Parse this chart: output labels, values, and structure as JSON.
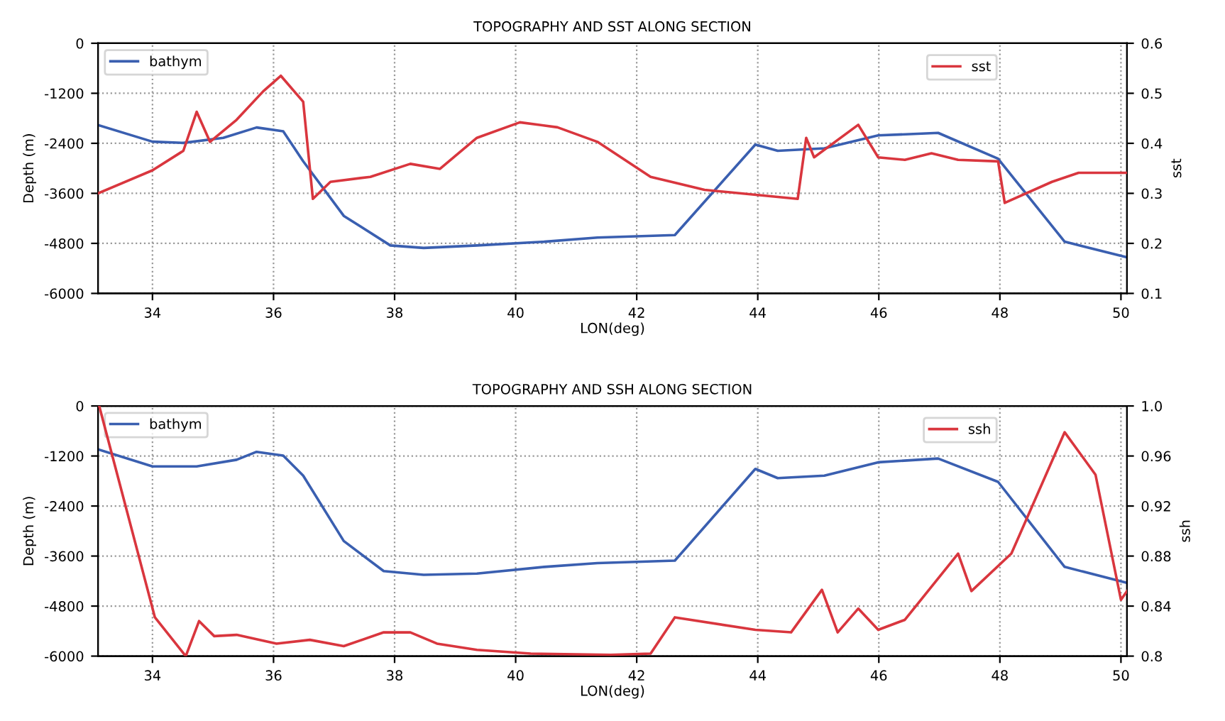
{
  "chart_data": [
    {
      "type": "line",
      "title": "TOPOGRAPHY AND SST ALONG SECTION",
      "xlabel": "LON(deg)",
      "ylabel": "Depth (m)",
      "y2label": "sst",
      "xlim": [
        33.1,
        50.1
      ],
      "xticks": [
        34,
        36,
        38,
        40,
        42,
        44,
        46,
        48,
        50
      ],
      "ylim": [
        -6000,
        0
      ],
      "yticks": [
        -6000,
        -4800,
        -3600,
        -2400,
        -1200,
        0
      ],
      "y2lim": [
        0.1,
        0.6
      ],
      "y2ticks": [
        0.1,
        0.2,
        0.3,
        0.4,
        0.5,
        0.6
      ],
      "grid": true,
      "legend": "top left",
      "series": [
        {
          "name": "bathym",
          "color": "#3a5fb0",
          "x": [
            33.1,
            34,
            34.51,
            35.17,
            35.72,
            36.16,
            36.49,
            37.16,
            37.93,
            38.48,
            39.36,
            40.47,
            41.35,
            42.63,
            43.96,
            44.33,
            45.1,
            45.99,
            46.98,
            47.97,
            49.07,
            50.09
          ],
          "values": [
            -1960,
            -2360,
            -2390,
            -2270,
            -2020,
            -2110,
            -2830,
            -4140,
            -4850,
            -4910,
            -4850,
            -4760,
            -4660,
            -4600,
            -2430,
            -2580,
            -2520,
            -2210,
            -2150,
            -2770,
            -4760,
            -5130
          ]
        },
        {
          "name": "sst",
          "color": "#d9363e",
          "axis": "y2",
          "x": [
            33.1,
            34,
            34.51,
            34.73,
            34.95,
            35.39,
            35.83,
            36.12,
            36.49,
            36.65,
            36.94,
            37.6,
            38.26,
            38.75,
            39.36,
            40.07,
            40.69,
            41.35,
            42.23,
            43.12,
            44.66,
            44.8,
            44.93,
            45.66,
            45.99,
            46.43,
            46.87,
            47.31,
            47.97,
            48.08,
            48.86,
            49.3,
            50.09
          ],
          "values": [
            0.3,
            0.346,
            0.385,
            0.463,
            0.403,
            0.447,
            0.504,
            0.535,
            0.483,
            0.289,
            0.323,
            0.333,
            0.359,
            0.349,
            0.411,
            0.442,
            0.432,
            0.403,
            0.333,
            0.307,
            0.289,
            0.411,
            0.372,
            0.437,
            0.372,
            0.367,
            0.38,
            0.367,
            0.364,
            0.281,
            0.323,
            0.341,
            0.341
          ]
        }
      ]
    },
    {
      "type": "line",
      "title": "TOPOGRAPHY AND SSH ALONG SECTION",
      "xlabel": "LON(deg)",
      "ylabel": "Depth (m)",
      "y2label": "ssh",
      "xlim": [
        33.1,
        50.1
      ],
      "xticks": [
        34,
        36,
        38,
        40,
        42,
        44,
        46,
        48,
        50
      ],
      "ylim": [
        -6000,
        0
      ],
      "yticks": [
        -6000,
        -4800,
        -3600,
        -2400,
        -1200,
        0
      ],
      "y2lim": [
        0.8,
        1.0
      ],
      "y2ticks": [
        0.8,
        0.84,
        0.88,
        0.92,
        0.96,
        {
          "value": 1.0,
          "label": "1.0"
        }
      ],
      "grid": true,
      "legend": "top left",
      "series": [
        {
          "name": "bathym",
          "color": "#3a5fb0",
          "x": [
            33.1,
            34,
            34.73,
            35.39,
            35.72,
            36.16,
            36.49,
            37.16,
            37.82,
            38.48,
            39.36,
            40.47,
            41.35,
            42.63,
            43.96,
            44.33,
            45.1,
            45.99,
            46.98,
            47.97,
            49.07,
            50.09
          ],
          "values": [
            -1040,
            -1450,
            -1450,
            -1290,
            -1100,
            -1190,
            -1670,
            -3240,
            -3960,
            -4050,
            -4020,
            -3860,
            -3770,
            -3710,
            -1510,
            -1730,
            -1670,
            -1350,
            -1260,
            -1820,
            -3860,
            -4240
          ]
        },
        {
          "name": "ssh",
          "color": "#d9363e",
          "axis": "y2",
          "x": [
            33.12,
            34.04,
            34.55,
            34.77,
            35.02,
            35.39,
            36.05,
            36.6,
            37.16,
            37.82,
            38.26,
            38.7,
            39.36,
            40.25,
            41.57,
            42.23,
            42.63,
            43.96,
            44.55,
            45.06,
            45.32,
            45.66,
            45.99,
            46.43,
            47.31,
            47.53,
            48.19,
            49.07,
            49.58,
            50.0,
            50.1
          ],
          "values": [
            1.0,
            0.831,
            0.8,
            0.828,
            0.816,
            0.817,
            0.81,
            0.813,
            0.808,
            0.819,
            0.819,
            0.81,
            0.805,
            0.802,
            0.801,
            0.802,
            0.831,
            0.821,
            0.819,
            0.853,
            0.819,
            0.838,
            0.821,
            0.829,
            0.882,
            0.852,
            0.882,
            0.979,
            0.945,
            0.845,
            0.852
          ]
        }
      ]
    }
  ]
}
